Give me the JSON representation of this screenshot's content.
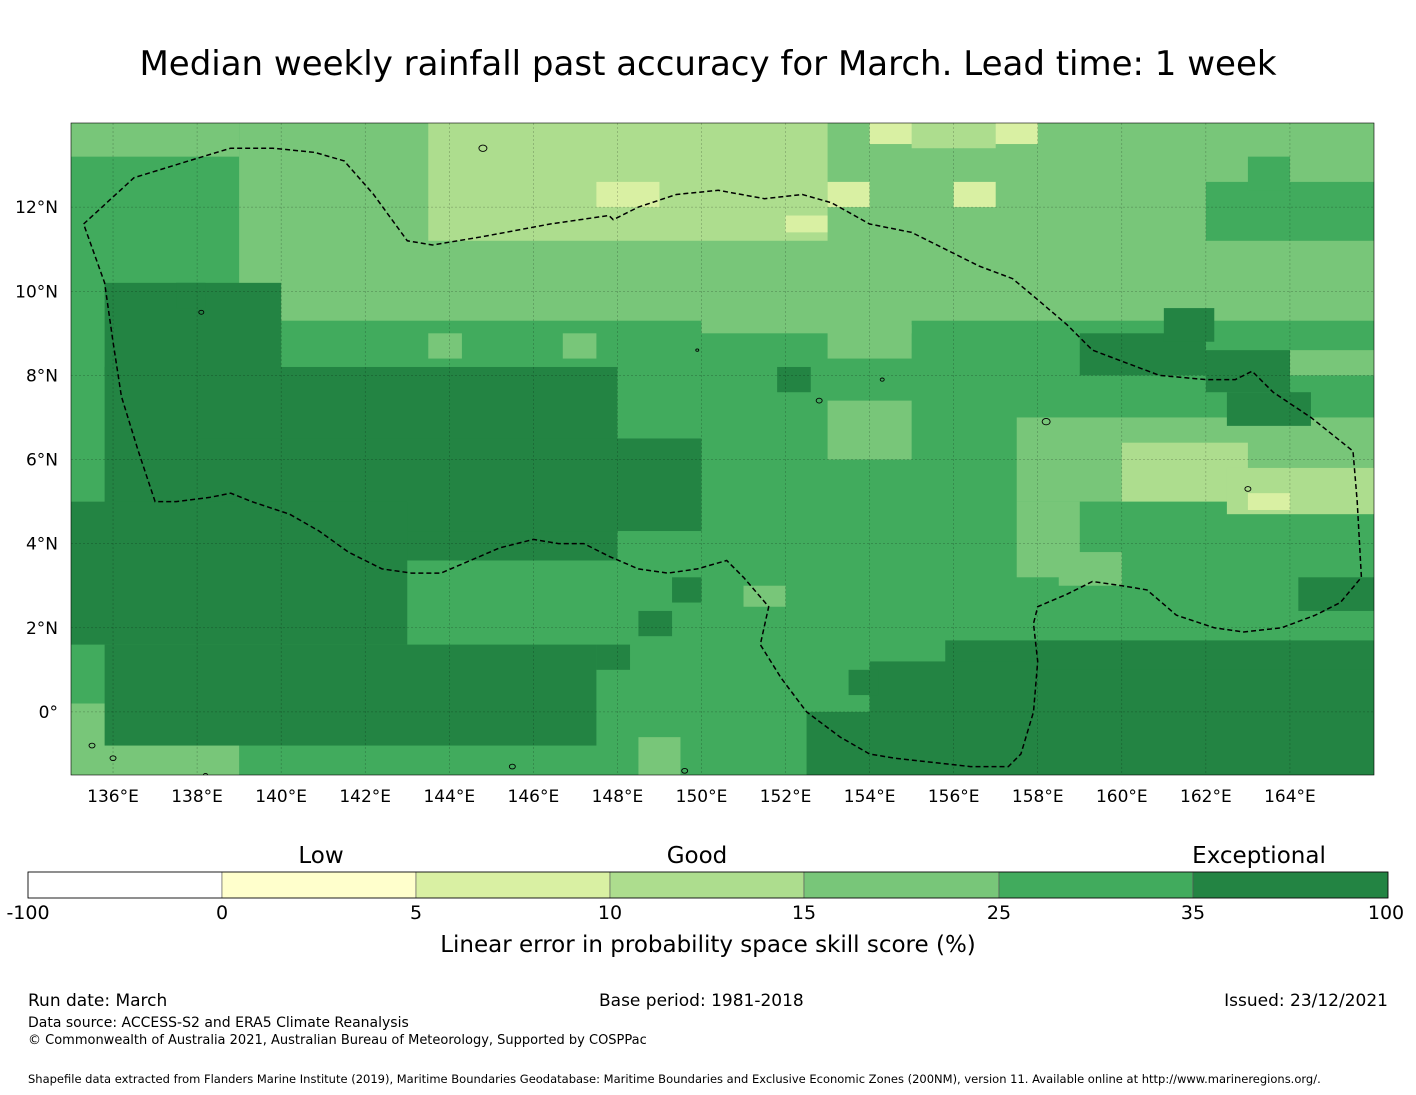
{
  "title": "Median weekly rainfall past accuracy for March. Lead time: 1 week",
  "map": {
    "lon_range": [
      135,
      166
    ],
    "lat_range": [
      -1.5,
      14
    ],
    "lon_ticks": [
      "136°E",
      "138°E",
      "140°E",
      "142°E",
      "144°E",
      "146°E",
      "148°E",
      "150°E",
      "152°E",
      "154°E",
      "156°E",
      "158°E",
      "160°E",
      "162°E",
      "164°E"
    ],
    "lat_ticks": [
      "12°N",
      "10°N",
      "8°N",
      "6°N",
      "4°N",
      "2°N",
      "0°"
    ]
  },
  "colorbar": {
    "categories": [
      "Low",
      "Good",
      "Exceptional"
    ],
    "tick_labels": [
      "-100",
      "0",
      "5",
      "10",
      "15",
      "25",
      "35",
      "100"
    ],
    "colors": [
      "#ffffff",
      "#ffffcc",
      "#d9f0a3",
      "#addd8e",
      "#78c679",
      "#41ab5d",
      "#238443"
    ],
    "label": "Linear error in probability space skill score (%)"
  },
  "footer": {
    "run_date": "Run date: March",
    "base_period": "Base period: 1981-2018",
    "issued": "Issued: 23/12/2021",
    "data_source": "Data source: ACCESS-S2 and ERA5 Climate Reanalysis",
    "copyright": "© Commonwealth of Australia 2021, Australian Bureau of Meteorology, Supported by COSPPac",
    "shapefile": "Shapefile data extracted from Flanders Marine Institute (2019), Maritime Boundaries Geodatabase: Maritime Boundaries and Exclusive Economic Zones (200NM), version 11. Available online at http://www.marineregions.org/."
  }
}
